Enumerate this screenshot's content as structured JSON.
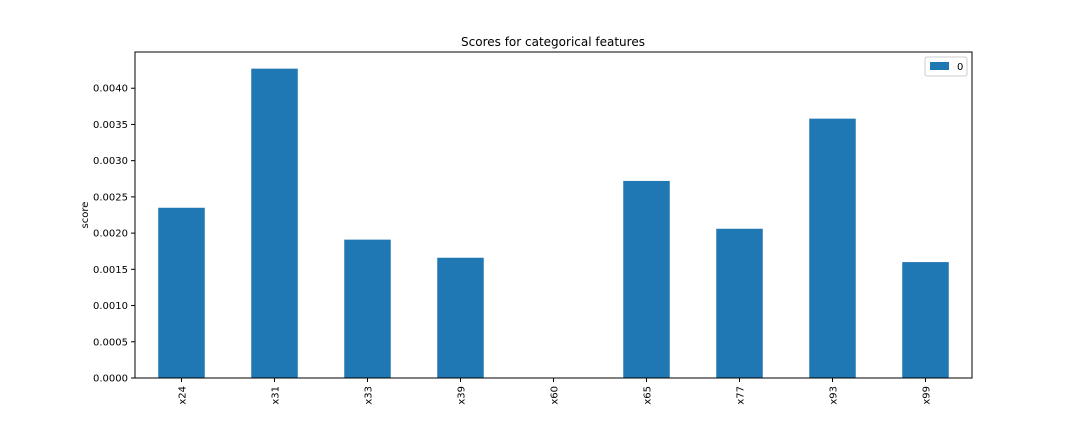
{
  "chart_data": {
    "type": "bar",
    "title": "Scores for categorical features",
    "xlabel": "",
    "ylabel": "score",
    "categories": [
      "x24",
      "x31",
      "x33",
      "x39",
      "x60",
      "x65",
      "x77",
      "x93",
      "x99"
    ],
    "series": [
      {
        "name": "0",
        "color": "#1f77b4",
        "values": [
          0.00235,
          0.00427,
          0.00191,
          0.00166,
          0.0,
          0.00272,
          0.00206,
          0.00358,
          0.0016
        ]
      }
    ],
    "ylim": [
      0,
      0.0045
    ],
    "yticks": [
      0.0,
      0.0005,
      0.001,
      0.0015,
      0.002,
      0.0025,
      0.003,
      0.0035,
      0.004
    ],
    "ytick_labels": [
      "0.0000",
      "0.0005",
      "0.0010",
      "0.0015",
      "0.0020",
      "0.0025",
      "0.0030",
      "0.0035",
      "0.0040"
    ],
    "legend": {
      "position": "top-right",
      "entries": [
        "0"
      ]
    },
    "grid": false
  }
}
